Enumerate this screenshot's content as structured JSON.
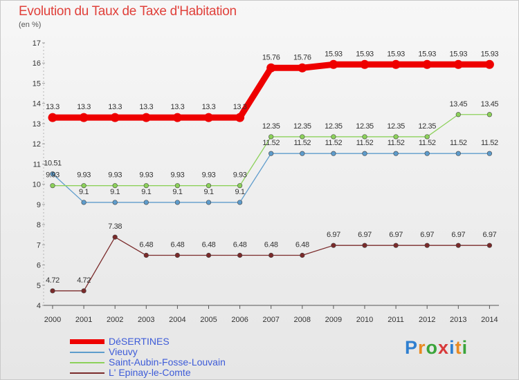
{
  "header": {
    "title": "Evolution du Taux de Taxe d'Habitation",
    "subtitle": "(en %)"
  },
  "logo": {
    "letters": [
      "P",
      "r",
      "o",
      "x",
      "i",
      "t",
      "i"
    ],
    "colors": [
      "#2f7fd0",
      "#e88a22",
      "#3aa43a",
      "#d83a3a",
      "#2f7fd0",
      "#e88a22",
      "#3aa43a"
    ]
  },
  "chart_data": {
    "type": "line",
    "title": "Evolution du Taux de Taxe d'Habitation",
    "ylabel": "(en %)",
    "xlabel": "",
    "x": [
      "2000",
      "2001",
      "2002",
      "2003",
      "2004",
      "2005",
      "2006",
      "2007",
      "2008",
      "2009",
      "2010",
      "2011",
      "2012",
      "2013",
      "2014"
    ],
    "ylim": [
      4,
      17
    ],
    "yticks": [
      "4",
      "5",
      "6",
      "7",
      "8",
      "9",
      "10",
      "11",
      "12",
      "13",
      "14",
      "15",
      "16",
      "17"
    ],
    "grid": false,
    "legend_position": "bottom-left",
    "series": [
      {
        "name": "DéSERTINES",
        "color": "#ee0000",
        "values": [
          13.3,
          13.3,
          13.3,
          13.3,
          13.3,
          13.3,
          13.3,
          15.76,
          15.76,
          15.93,
          15.93,
          15.93,
          15.93,
          15.93,
          15.93
        ],
        "labels": [
          "13.3",
          "13.3",
          "13.3",
          "13.3",
          "13.3",
          "13.3",
          "13.3",
          "15.76",
          "15.76",
          "15.93",
          "15.93",
          "15.93",
          "15.93",
          "15.93",
          "15.93"
        ]
      },
      {
        "name": "Vieuvy",
        "color": "#5e9ccc",
        "values": [
          10.51,
          9.1,
          9.1,
          9.1,
          9.1,
          9.1,
          9.1,
          11.52,
          11.52,
          11.52,
          11.52,
          11.52,
          11.52,
          11.52,
          11.52
        ],
        "labels": [
          "10.51",
          "9.1",
          "9.1",
          "9.1",
          "9.1",
          "9.1",
          "9.1",
          "11.52",
          "11.52",
          "11.52",
          "11.52",
          "11.52",
          "11.52",
          "11.52",
          "11.52"
        ]
      },
      {
        "name": "Saint-Aubin-Fosse-Louvain",
        "color": "#8cd15a",
        "values": [
          9.93,
          9.93,
          9.93,
          9.93,
          9.93,
          9.93,
          9.93,
          12.35,
          12.35,
          12.35,
          12.35,
          12.35,
          12.35,
          13.45,
          13.45
        ],
        "labels": [
          "9.93",
          "9.93",
          "9.93",
          "9.93",
          "9.93",
          "9.93",
          "9.93",
          "12.35",
          "12.35",
          "12.35",
          "12.35",
          "12.35",
          "12.35",
          "13.45",
          "13.45"
        ]
      },
      {
        "name": "L' Epinay-le-Comte",
        "color": "#7a2a2a",
        "values": [
          4.72,
          4.72,
          7.38,
          6.48,
          6.48,
          6.48,
          6.48,
          6.48,
          6.48,
          6.97,
          6.97,
          6.97,
          6.97,
          6.97,
          6.97
        ],
        "labels": [
          "4.72",
          "4.72",
          "7.38",
          "6.48",
          "6.48",
          "6.48",
          "6.48",
          "6.48",
          "6.48",
          "6.97",
          "6.97",
          "6.97",
          "6.97",
          "6.97",
          "6.97"
        ]
      }
    ]
  }
}
